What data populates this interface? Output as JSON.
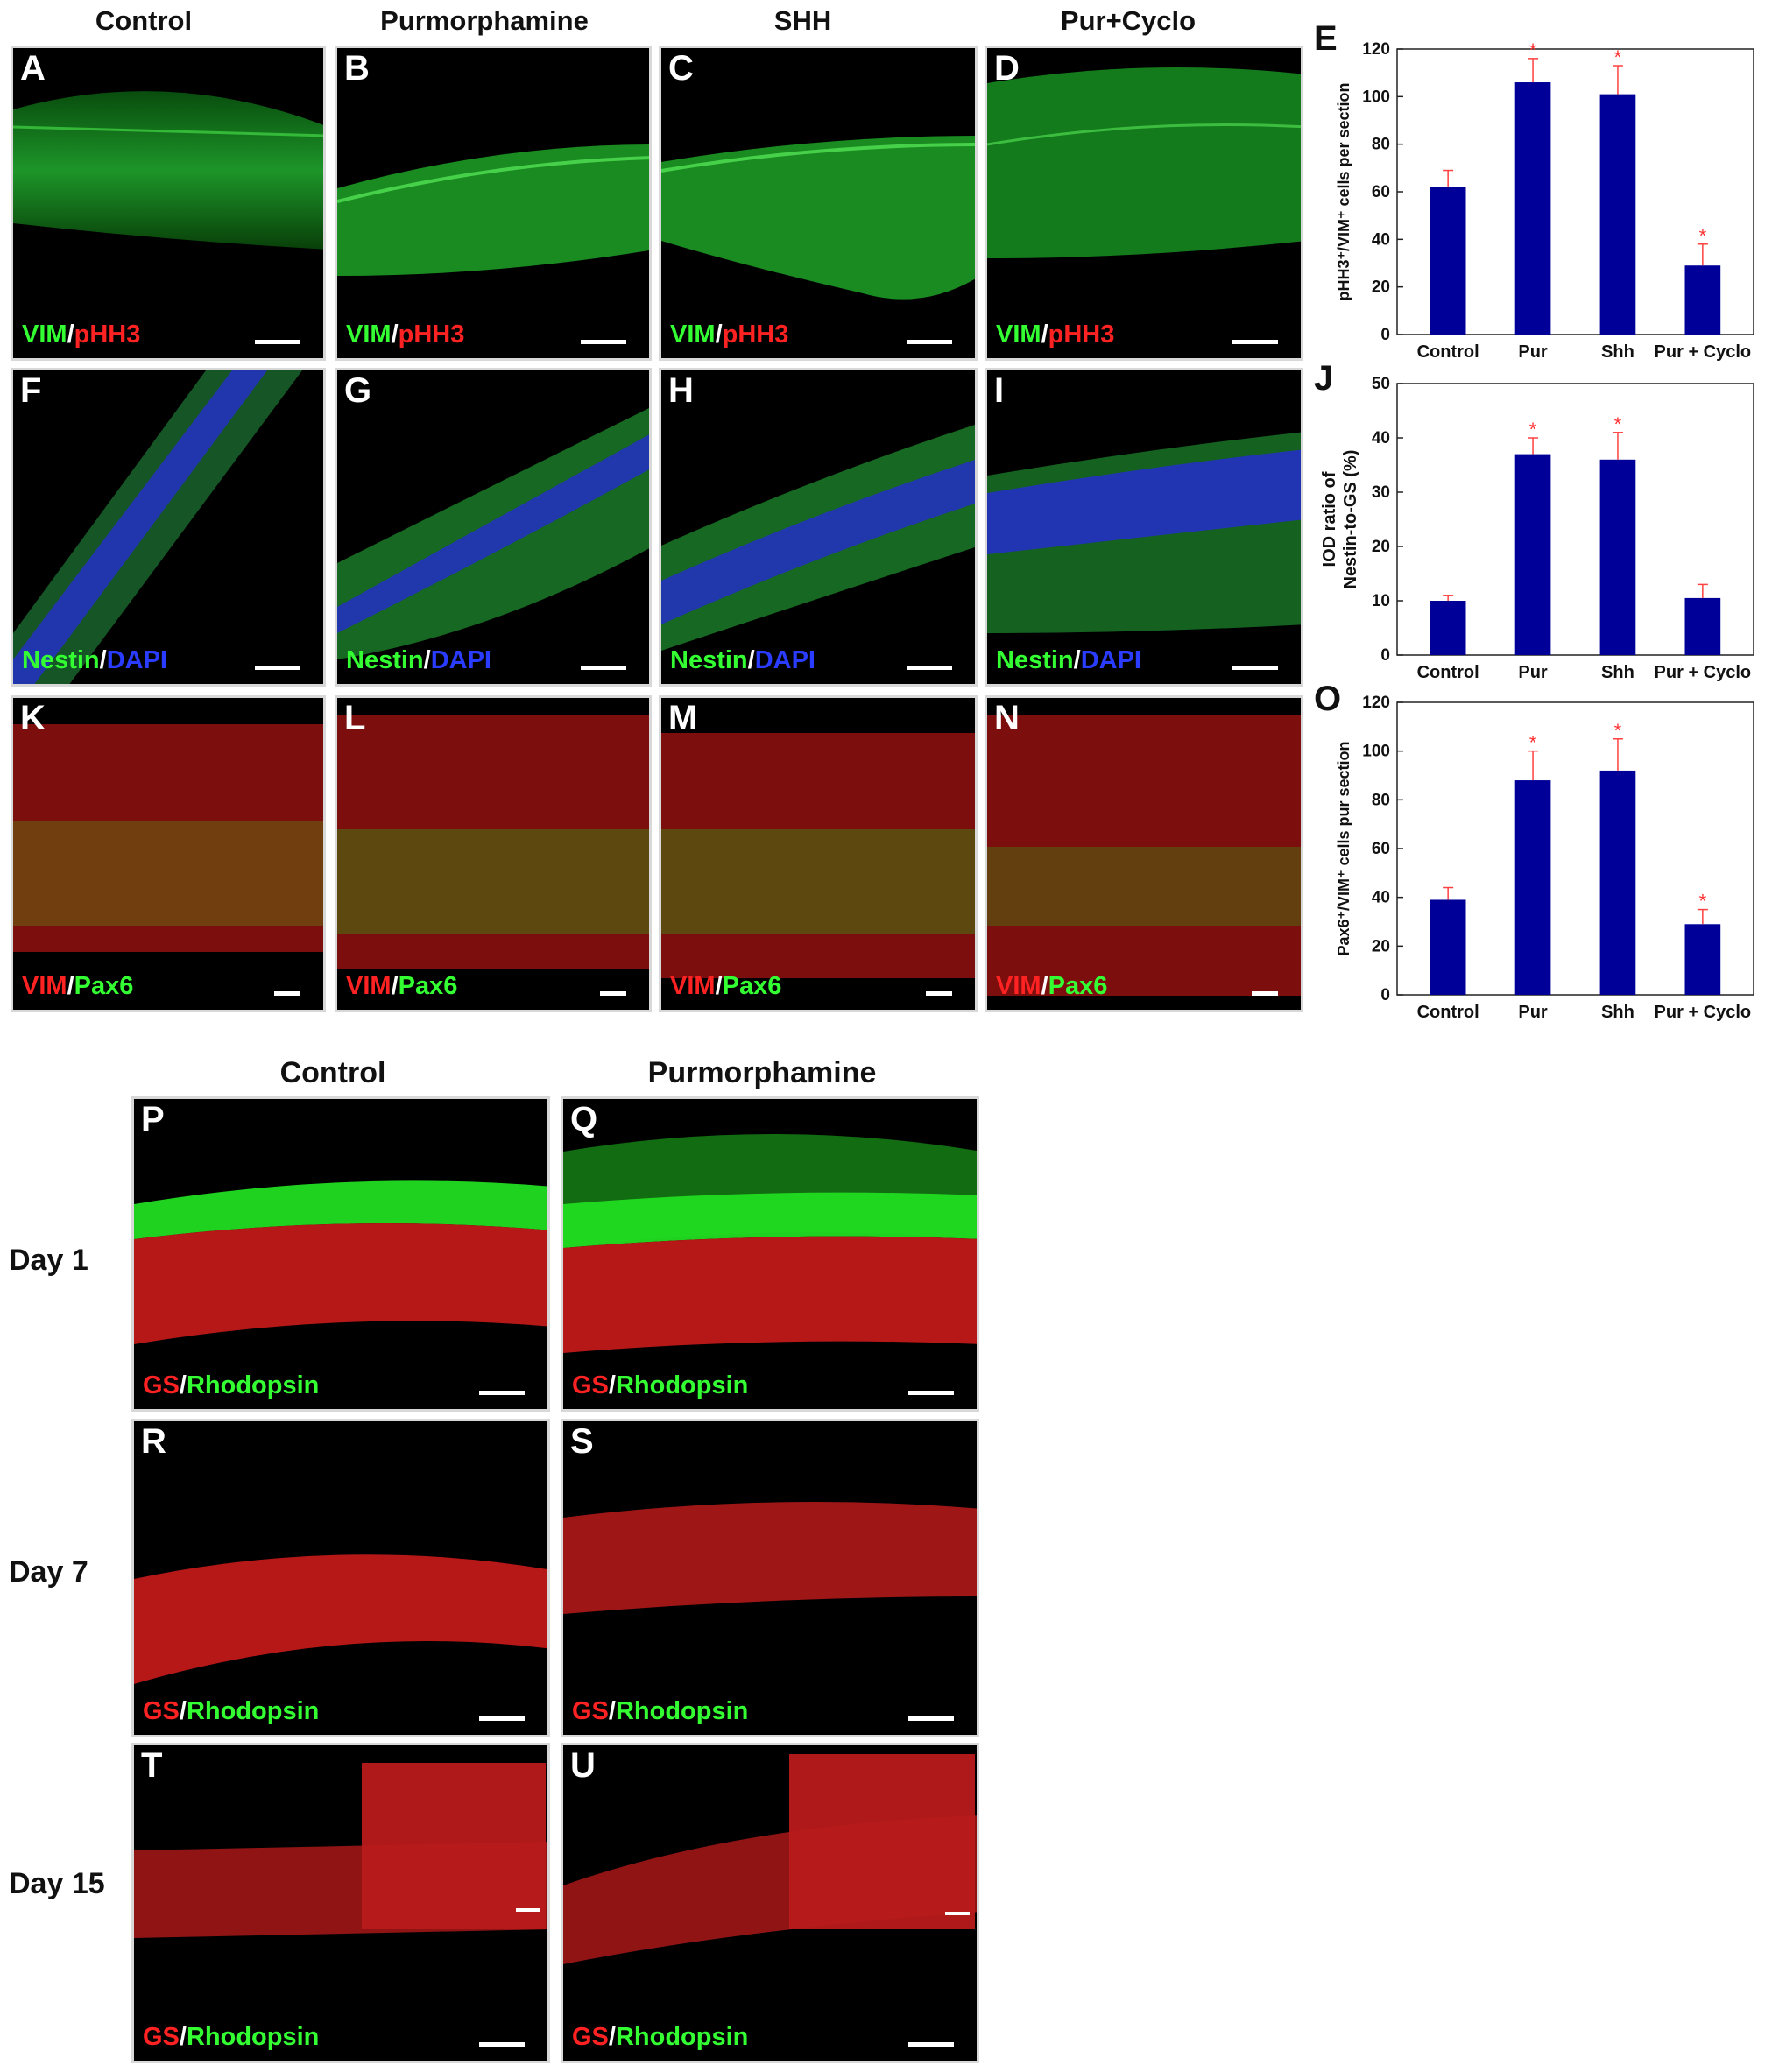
{
  "top_columns": [
    "Control",
    "Purmorphamine",
    "SHH",
    "Pur+Cyclo"
  ],
  "row1": [
    {
      "letter": "A",
      "m1": "VIM",
      "m2": "pHH3"
    },
    {
      "letter": "B",
      "m1": "VIM",
      "m2": "pHH3"
    },
    {
      "letter": "C",
      "m1": "VIM",
      "m2": "pHH3"
    },
    {
      "letter": "D",
      "m1": "VIM",
      "m2": "pHH3"
    }
  ],
  "row2": [
    {
      "letter": "F",
      "m1": "Nestin",
      "m2": "DAPI"
    },
    {
      "letter": "G",
      "m1": "Nestin",
      "m2": "DAPI"
    },
    {
      "letter": "H",
      "m1": "Nestin",
      "m2": "DAPI"
    },
    {
      "letter": "I",
      "m1": "Nestin",
      "m2": "DAPI"
    }
  ],
  "row3": [
    {
      "letter": "K",
      "m1": "VIM",
      "m2": "Pax6"
    },
    {
      "letter": "L",
      "m1": "VIM",
      "m2": "Pax6"
    },
    {
      "letter": "M",
      "m1": "VIM",
      "m2": "Pax6"
    },
    {
      "letter": "N",
      "m1": "VIM",
      "m2": "Pax6"
    }
  ],
  "bottom_columns": [
    "Control",
    "Purmorphamine"
  ],
  "days": [
    "Day 1",
    "Day 7",
    "Day 15"
  ],
  "bottom_panels": [
    {
      "letter": "P",
      "m1": "GS",
      "m2": "Rhodopsin"
    },
    {
      "letter": "Q",
      "m1": "GS",
      "m2": "Rhodopsin"
    },
    {
      "letter": "R",
      "m1": "GS",
      "m2": "Rhodopsin"
    },
    {
      "letter": "S",
      "m1": "GS",
      "m2": "Rhodopsin"
    },
    {
      "letter": "T",
      "m1": "GS",
      "m2": "Rhodopsin"
    },
    {
      "letter": "U",
      "m1": "GS",
      "m2": "Rhodopsin"
    }
  ],
  "separator": "/",
  "colors": {
    "bar": "#000099",
    "error": "#ff4040",
    "star": "#ff3030",
    "green": "#33ff33",
    "red": "#ff2222",
    "blue": "#2a3cff"
  },
  "chart_data": [
    {
      "letter": "E",
      "type": "bar",
      "categories": [
        "Control",
        "Pur",
        "Shh",
        "Pur + Cyclo"
      ],
      "values": [
        62,
        106,
        101,
        29
      ],
      "errors": [
        7,
        10,
        12,
        9
      ],
      "significant": [
        false,
        true,
        true,
        true
      ],
      "ylabel": "pHH3⁺/VIM⁺ cells per section",
      "ylim": [
        0,
        120
      ],
      "yticks": [
        0,
        20,
        40,
        60,
        80,
        100,
        120
      ]
    },
    {
      "letter": "J",
      "type": "bar",
      "categories": [
        "Control",
        "Pur",
        "Shh",
        "Pur + Cyclo"
      ],
      "values": [
        10,
        37,
        36,
        10.5
      ],
      "errors": [
        1,
        3,
        5,
        2.5
      ],
      "significant": [
        false,
        true,
        true,
        false
      ],
      "ylabel": "IOD ratio of Nestin-to-GS (%)",
      "ylabel_lines": [
        "IOD ratio of",
        "Nestin-to-GS (%)"
      ],
      "ylim": [
        0,
        50
      ],
      "yticks": [
        0,
        10,
        20,
        30,
        40,
        50
      ]
    },
    {
      "letter": "O",
      "type": "bar",
      "categories": [
        "Control",
        "Pur",
        "Shh",
        "Pur + Cyclo"
      ],
      "values": [
        39,
        88,
        92,
        29
      ],
      "errors": [
        5,
        12,
        13,
        6
      ],
      "significant": [
        false,
        true,
        true,
        true
      ],
      "ylabel": "Pax6⁺/VIM⁺ cells pur section",
      "ylim": [
        0,
        120
      ],
      "yticks": [
        0,
        20,
        40,
        60,
        80,
        100,
        120
      ]
    }
  ]
}
